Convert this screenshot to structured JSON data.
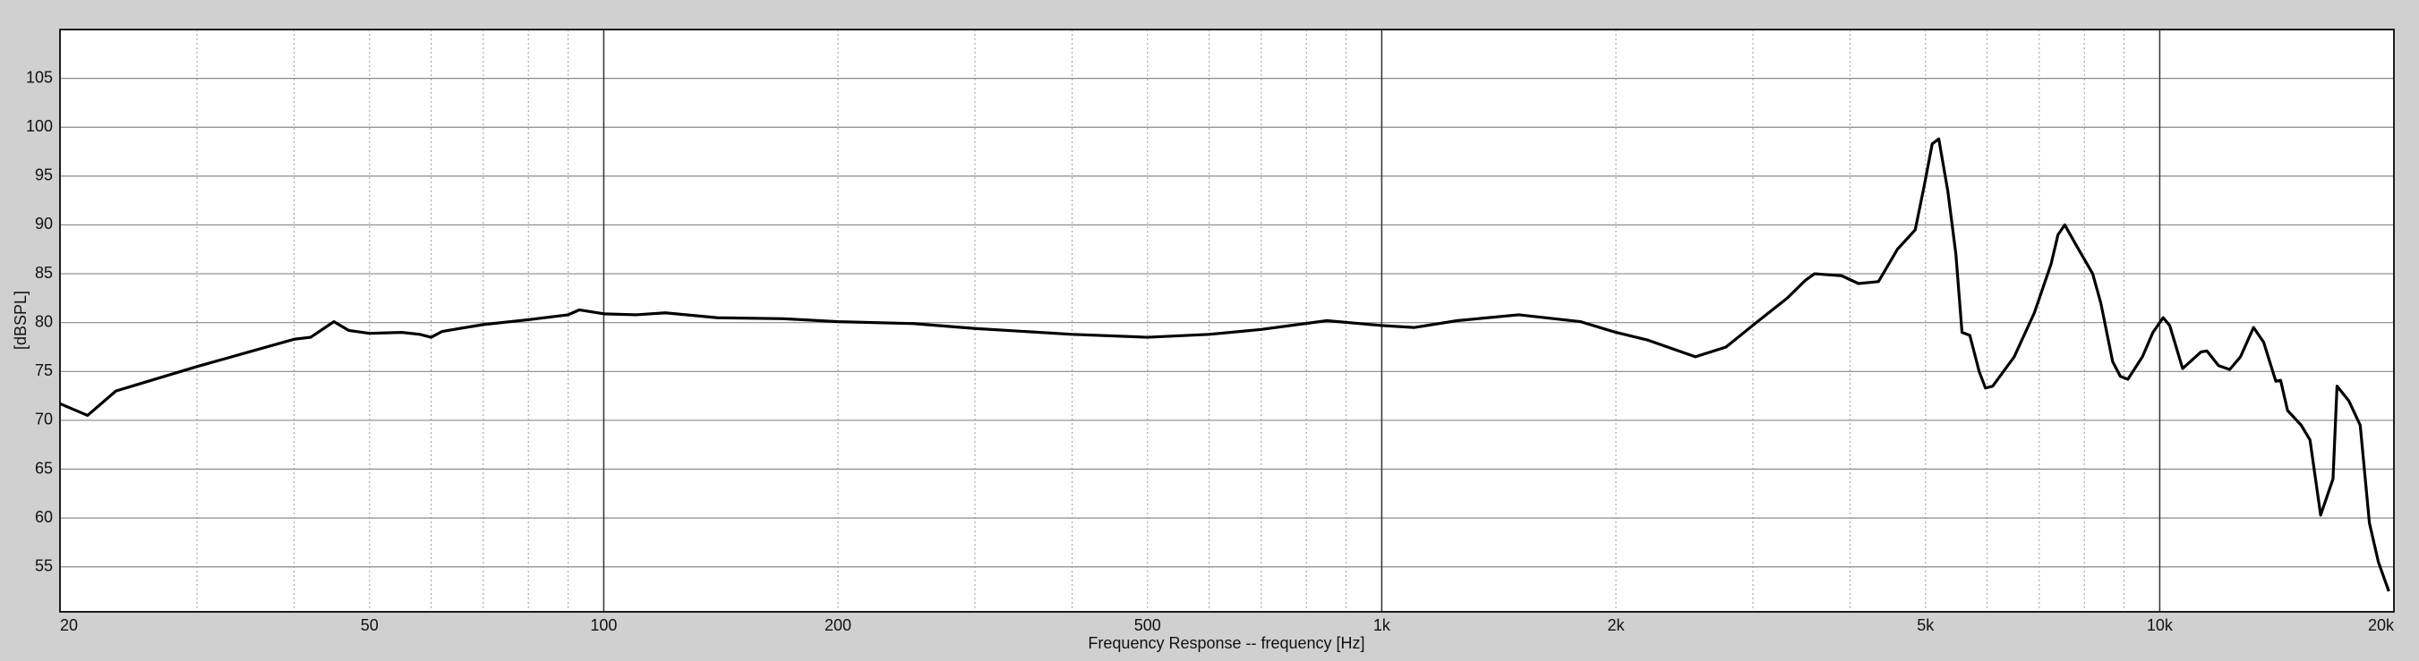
{
  "chart_data": {
    "type": "line",
    "xlabel": "Frequency Response -- frequency [Hz]",
    "ylabel": "[dBSPL]",
    "xscale": "log",
    "xlim": [
      20,
      20000
    ],
    "ylim": [
      50.4,
      110
    ],
    "xticks": [
      20,
      50,
      100,
      200,
      500,
      {
        "value": 1000,
        "label": "1k"
      },
      {
        "value": 2000,
        "label": "2k"
      },
      {
        "value": 5000,
        "label": "5k"
      },
      {
        "value": 10000,
        "label": "10k"
      },
      {
        "value": 20000,
        "label": "20k"
      }
    ],
    "yticks": [
      55,
      60,
      65,
      70,
      75,
      80,
      85,
      90,
      95,
      100,
      105
    ],
    "x_major_grid": [
      100,
      1000,
      10000
    ],
    "x_minor_grid": [
      30,
      40,
      60,
      70,
      80,
      90,
      300,
      400,
      600,
      700,
      800,
      900,
      3000,
      4000,
      6000,
      7000,
      8000,
      9000
    ],
    "grid": true,
    "x": [
      20,
      21.7,
      23.6,
      25,
      30,
      35,
      40,
      42,
      45,
      47,
      50,
      55,
      58,
      60,
      62,
      70,
      80,
      90,
      93,
      100,
      110,
      120,
      140,
      170,
      200,
      250,
      300,
      400,
      500,
      600,
      700,
      850,
      1000,
      1100,
      1250,
      1500,
      1800,
      2000,
      2200,
      2530,
      2770,
      3030,
      3320,
      3500,
      3600,
      3900,
      4100,
      4350,
      4600,
      4850,
      4980,
      5100,
      5200,
      5340,
      5470,
      5570,
      5700,
      5860,
      5970,
      6100,
      6500,
      6900,
      7250,
      7400,
      7550,
      7800,
      8200,
      8400,
      8700,
      8900,
      9100,
      9500,
      9800,
      10100,
      10300,
      10700,
      11300,
      11500,
      11900,
      12300,
      12700,
      13200,
      13600,
      14100,
      14300,
      14600,
      15200,
      15600,
      16100,
      16700,
      16900,
      17500,
      18100,
      18600,
      19100,
      19700
    ],
    "series": [
      {
        "name": "Frequency Response",
        "color": "#000000",
        "values": [
          71.7,
          70.5,
          73,
          73.6,
          75.5,
          77,
          78.3,
          78.5,
          80.1,
          79.2,
          78.9,
          79,
          78.8,
          78.5,
          79.1,
          79.8,
          80.3,
          80.8,
          81.3,
          80.9,
          80.8,
          81,
          80.5,
          80.4,
          80.1,
          79.9,
          79.4,
          78.8,
          78.5,
          78.8,
          79.3,
          80.2,
          79.7,
          79.5,
          80.2,
          80.8,
          80.1,
          79,
          78.2,
          76.5,
          77.5,
          80,
          82.5,
          84.3,
          85,
          84.8,
          84,
          84.2,
          87.5,
          89.5,
          94,
          98.3,
          98.8,
          93.5,
          87,
          79,
          78.7,
          75,
          73.3,
          73.5,
          76.5,
          81,
          86,
          89,
          90,
          88,
          85,
          82,
          76,
          74.5,
          74.2,
          76.5,
          79,
          80.5,
          79.7,
          75.3,
          77,
          77.1,
          75.6,
          75.2,
          76.5,
          79.5,
          78,
          74,
          74.1,
          71,
          69.5,
          68,
          60.3,
          64,
          73.5,
          72,
          69.5,
          59.5,
          55.5,
          52.5
        ]
      }
    ]
  }
}
